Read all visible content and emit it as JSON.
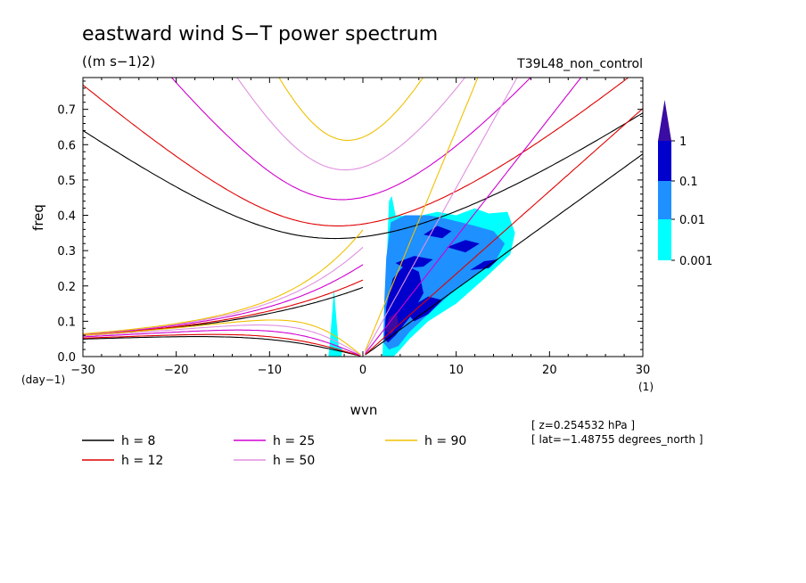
{
  "chart_data": {
    "type": "contour",
    "title": "eastward wind S−T power spectrum",
    "units": "((m s−1)2)",
    "run_label": "T39L48_non_control",
    "xlabel": "wvn",
    "ylabel": "freq",
    "x_unit_label": "(1)",
    "y_unit_label": "(day−1)",
    "xlim": [
      -30,
      30
    ],
    "ylim": [
      0,
      0.79
    ],
    "x_ticks": [
      -30,
      -20,
      -10,
      0,
      10,
      20,
      30
    ],
    "x_tick_labels": [
      "−30",
      "−20",
      "−10",
      "0",
      "10",
      "20",
      "30"
    ],
    "y_ticks": [
      0,
      0.1,
      0.2,
      0.3,
      0.4,
      0.5,
      0.6,
      0.7
    ],
    "y_tick_labels": [
      "0.0",
      "0.1",
      "0.2",
      "0.3",
      "0.4",
      "0.5",
      "0.6",
      "0.7"
    ],
    "colorbar": {
      "levels": [
        "0.001",
        "0.01",
        "0.1",
        "1"
      ],
      "colors": [
        "#00ffff",
        "#1e90ff",
        "#0000cd",
        "#3a0ca3"
      ]
    },
    "dispersion_curves": [
      {
        "name": "h =  8",
        "h": 8,
        "color": "#000000"
      },
      {
        "name": "h = 12",
        "h": 12,
        "color": "#e00000"
      },
      {
        "name": "h = 25",
        "h": 25,
        "color": "#d000d0"
      },
      {
        "name": "h = 50",
        "h": 50,
        "color": "#e090e0"
      },
      {
        "name": "h = 90",
        "h": 90,
        "color": "#f0c000"
      }
    ],
    "annotations": {
      "level": "[ z=0.254532 hPa ]",
      "latitude": "[ lat=−1.48755 degrees_north ]"
    }
  }
}
